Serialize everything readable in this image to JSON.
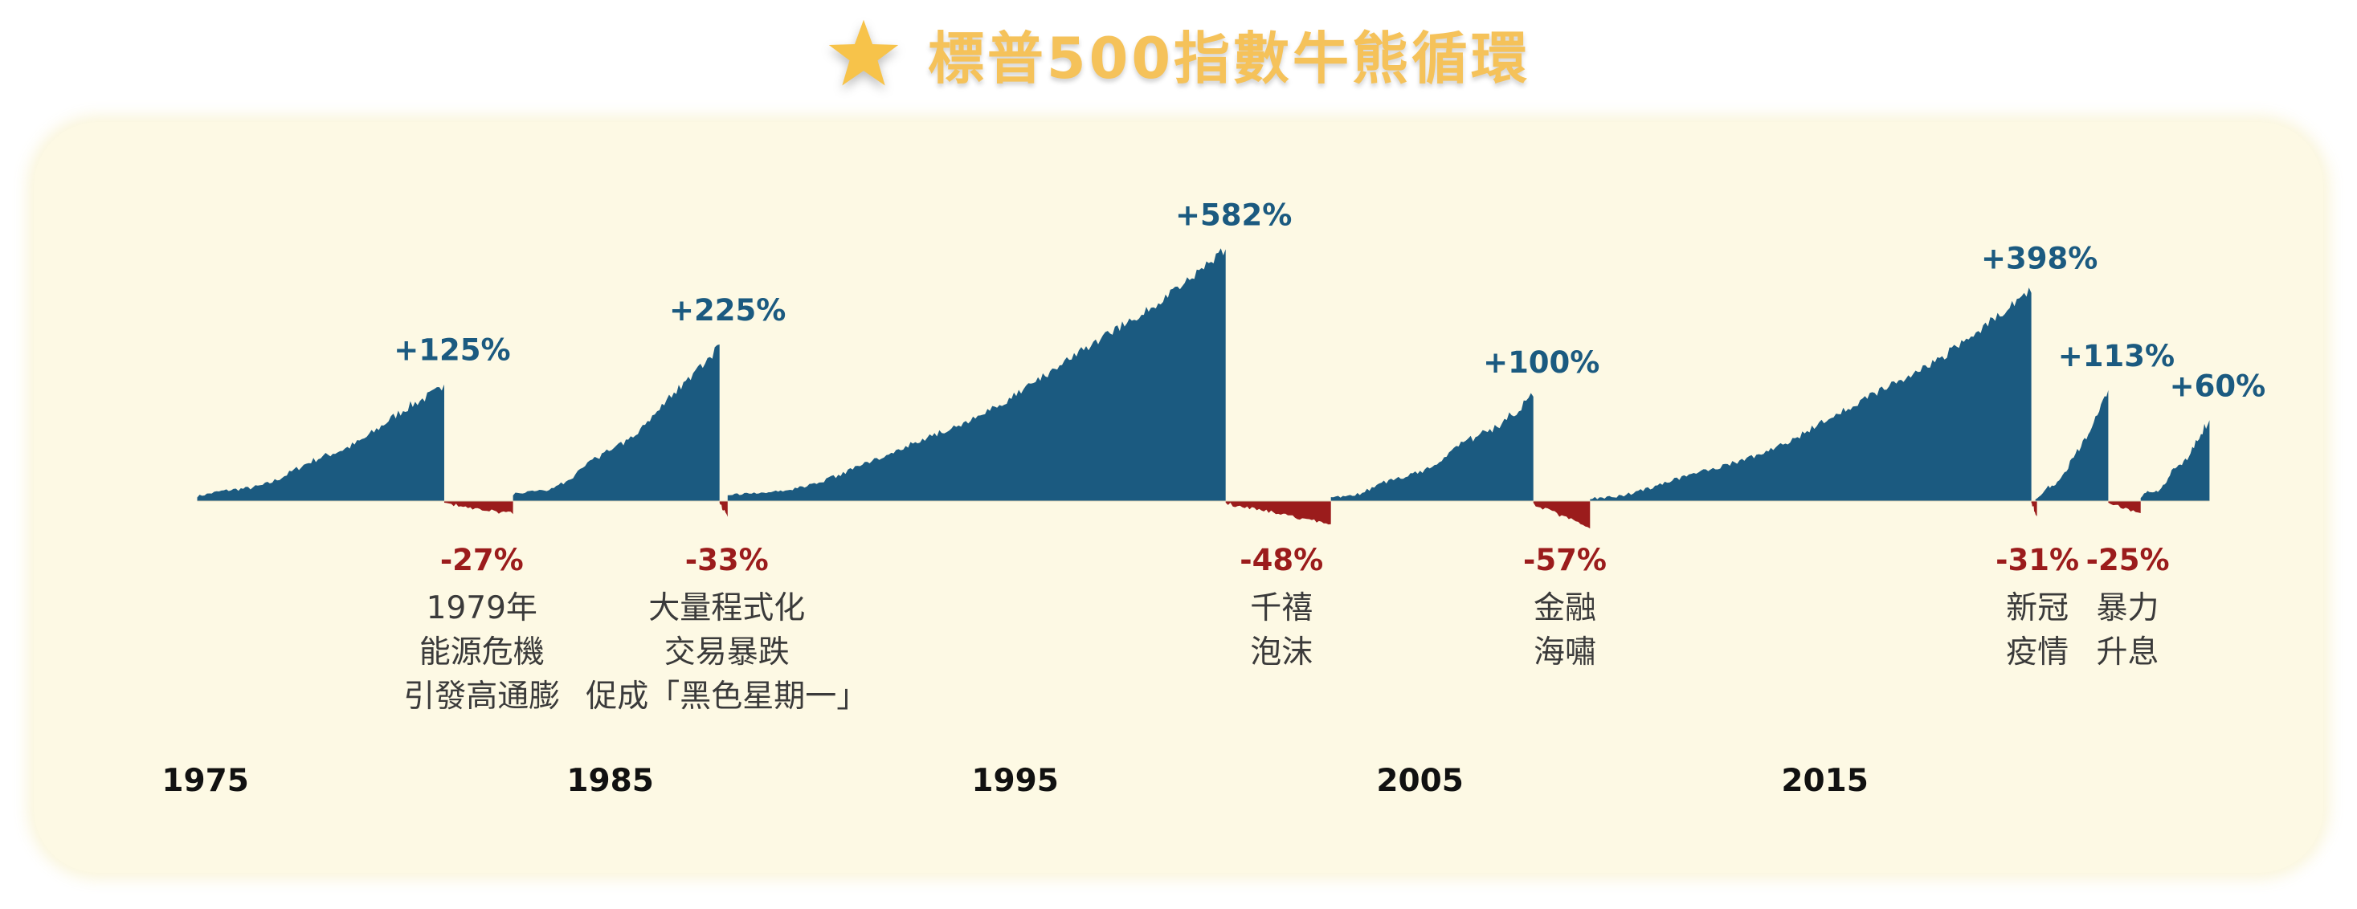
{
  "title": "標普500指數牛熊循環",
  "chart_data": {
    "type": "area",
    "title": "標普500指數牛熊循環",
    "x_ticks": [
      "1975",
      "1985",
      "1995",
      "2005",
      "2015"
    ],
    "colors": {
      "bull": "#1B5A80",
      "bear": "#9B1C1C",
      "title": "#F5C25A"
    },
    "bull_markets": [
      {
        "label": "+125%",
        "value": 125,
        "start": 1974.8,
        "end": 1980.9
      },
      {
        "label": "+225%",
        "value": 225,
        "start": 1982.6,
        "end": 1987.7
      },
      {
        "label": "+582%",
        "value": 582,
        "start": 1987.9,
        "end": 2000.2
      },
      {
        "label": "+100%",
        "value": 100,
        "start": 2002.8,
        "end": 2007.8
      },
      {
        "label": "+398%",
        "value": 398,
        "start": 2009.2,
        "end": 2020.1
      },
      {
        "label": "+113%",
        "value": 113,
        "start": 2020.2,
        "end": 2022.0
      },
      {
        "label": "+60%",
        "value": 60,
        "start": 2022.8,
        "end": 2024.5
      }
    ],
    "bear_markets": [
      {
        "label": "-27%",
        "value": -27,
        "start": 1980.9,
        "end": 1982.6,
        "event": [
          "1979年",
          "能源危機",
          "引發高通膨"
        ]
      },
      {
        "label": "-33%",
        "value": -33,
        "start": 1987.7,
        "end": 1987.9,
        "event": [
          "大量程式化",
          "交易暴跌",
          "促成「黑色星期一」"
        ]
      },
      {
        "label": "-48%",
        "value": -48,
        "start": 2000.2,
        "end": 2002.8,
        "event": [
          "千禧",
          "泡沫"
        ]
      },
      {
        "label": "-57%",
        "value": -57,
        "start": 2007.8,
        "end": 2009.2,
        "event": [
          "金融",
          "海嘯"
        ]
      },
      {
        "label": "-31%",
        "value": -31,
        "start": 2020.1,
        "end": 2020.2,
        "event": [
          "新冠",
          "疫情"
        ]
      },
      {
        "label": "-25%",
        "value": -25,
        "start": 2022.0,
        "end": 2022.8,
        "event": [
          "暴力",
          "升息"
        ]
      }
    ]
  }
}
